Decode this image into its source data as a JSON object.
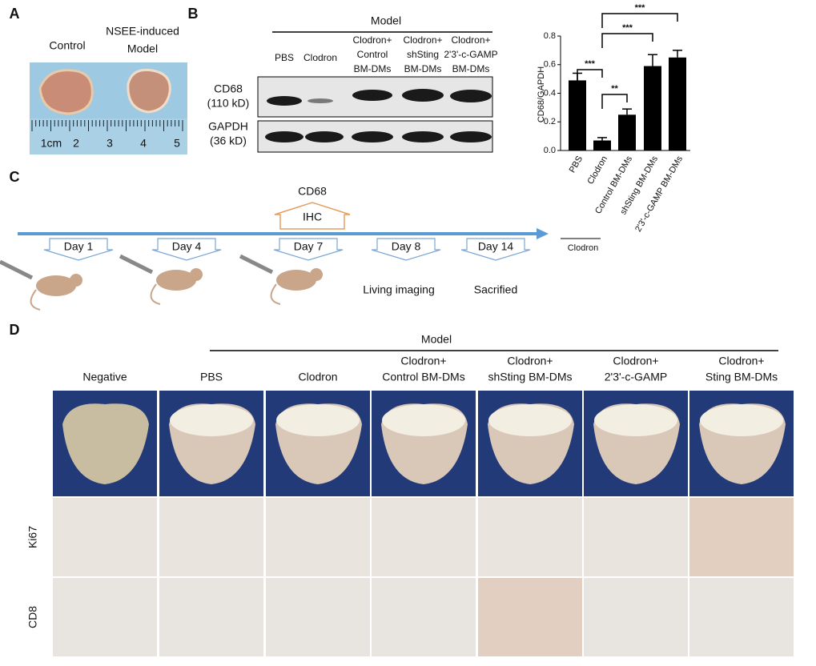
{
  "panel_a": {
    "label": "A",
    "control": "Control",
    "model": [
      "NSEE-induced",
      "Model"
    ],
    "ruler": [
      "1cm",
      "2",
      "3",
      "4",
      "5"
    ]
  },
  "panel_b": {
    "label": "B",
    "group": "Model",
    "lanes": [
      [
        "PBS"
      ],
      [
        "Clodron"
      ],
      [
        "Clodron+",
        "Control",
        "BM-DMs"
      ],
      [
        "Clodron+",
        "shSting",
        "BM-DMs"
      ],
      [
        "Clodron+",
        "2'3'-c-GAMP",
        "BM-DMs"
      ]
    ],
    "rows": [
      [
        "CD68",
        "(110 kD)"
      ],
      [
        "GAPDH",
        "(36 kD)"
      ]
    ]
  },
  "chart_data": {
    "type": "bar",
    "ylabel": "CD68/GAPDH",
    "categories": [
      "PBS",
      "Clodron",
      "Control BM-DMs",
      "shSting BM-DMs",
      "2'3'-c-GAMP BM-DMs"
    ],
    "values": [
      0.49,
      0.07,
      0.25,
      0.59,
      0.65
    ],
    "errors": [
      0.05,
      0.02,
      0.04,
      0.08,
      0.05
    ],
    "color": "#000000",
    "ylim": [
      0,
      0.8
    ],
    "yticks": [
      {
        "value": 0,
        "label": "0.0"
      },
      0.2,
      0.4,
      0.6,
      0.8
    ],
    "annotations": [
      "***",
      "**",
      "***",
      "***"
    ],
    "group_label": "Clodron"
  },
  "panel_c": {
    "label": "C",
    "marker": "CD68",
    "method": "IHC",
    "days": [
      "Day 1",
      "Day 4",
      "Day 7",
      "Day 8",
      "Day 14"
    ],
    "imaging": "Living imaging",
    "end": "Sacrified"
  },
  "panel_d": {
    "label": "D",
    "group": "Model",
    "columns": [
      [
        "Negative"
      ],
      [
        "PBS"
      ],
      [
        "Clodron"
      ],
      [
        "Clodron+",
        "Control BM-DMs"
      ],
      [
        "Clodron+",
        "shSting BM-DMs"
      ],
      [
        "Clodron+",
        "2'3'-c-GAMP"
      ],
      [
        "Clodron+",
        "Sting BM-DMs"
      ]
    ],
    "rows": [
      "Ki67",
      "CD8"
    ]
  }
}
